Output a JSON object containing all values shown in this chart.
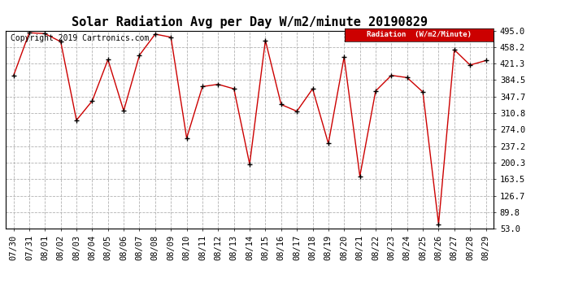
{
  "title": "Solar Radiation Avg per Day W/m2/minute 20190829",
  "copyright_text": "Copyright 2019 Cartronics.com",
  "legend_label": "Radiation  (W/m2/Minute)",
  "dates": [
    "07/30",
    "07/31",
    "08/01",
    "08/02",
    "08/03",
    "08/04",
    "08/05",
    "08/06",
    "08/07",
    "08/08",
    "08/09",
    "08/10",
    "08/11",
    "08/12",
    "08/13",
    "08/14",
    "08/15",
    "08/16",
    "08/17",
    "08/18",
    "08/19",
    "08/20",
    "08/21",
    "08/22",
    "08/23",
    "08/24",
    "08/25",
    "08/26",
    "08/27",
    "08/28",
    "08/29"
  ],
  "values": [
    394,
    490,
    488,
    470,
    295,
    338,
    430,
    316,
    440,
    487,
    480,
    255,
    370,
    375,
    365,
    197,
    473,
    330,
    315,
    365,
    243,
    436,
    170,
    360,
    395,
    390,
    358,
    63,
    452,
    418,
    428
  ],
  "line_color": "#cc0000",
  "marker_color": "#000000",
  "bg_color": "#ffffff",
  "plot_bg_color": "#ffffff",
  "grid_color": "#aaaaaa",
  "legend_bg": "#cc0000",
  "legend_text_color": "#ffffff",
  "yticks": [
    53.0,
    89.8,
    126.7,
    163.5,
    200.3,
    237.2,
    274.0,
    310.8,
    347.7,
    384.5,
    421.3,
    458.2,
    495.0
  ],
  "ymin": 53.0,
  "ymax": 495.0,
  "title_fontsize": 11,
  "tick_fontsize": 7.5,
  "copyright_fontsize": 7
}
